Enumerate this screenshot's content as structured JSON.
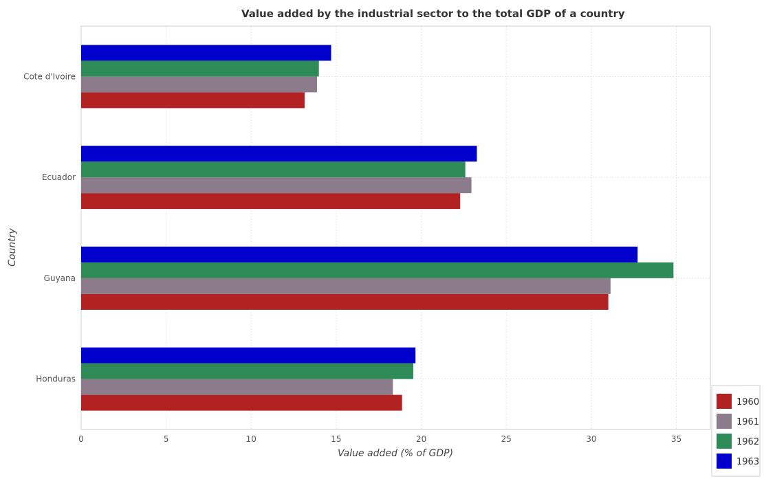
{
  "chart_data": {
    "type": "bar",
    "orientation": "horizontal",
    "title": "Value added by the industrial sector to the total GDP of a country",
    "xlabel": "Value added (% of GDP)",
    "ylabel": "Country",
    "categories": [
      "Cote d'Ivoire",
      "Ecuador",
      "Guyana",
      "Honduras"
    ],
    "xlim": [
      0,
      37
    ],
    "xticks": [
      0,
      5,
      10,
      15,
      20,
      25,
      30,
      35
    ],
    "grid": true,
    "legend_position": "bottom-right",
    "series": [
      {
        "name": "1960",
        "color": "#b22222",
        "values": [
          13.14,
          22.29,
          31.0,
          18.87
        ]
      },
      {
        "name": "1961",
        "color": "#8b7b8b",
        "values": [
          13.87,
          22.95,
          31.13,
          18.33
        ]
      },
      {
        "name": "1962",
        "color": "#2e8b57",
        "values": [
          13.98,
          22.59,
          34.83,
          19.53
        ]
      },
      {
        "name": "1963",
        "color": "#0000cd",
        "values": [
          14.7,
          23.27,
          32.72,
          19.66
        ]
      }
    ]
  }
}
